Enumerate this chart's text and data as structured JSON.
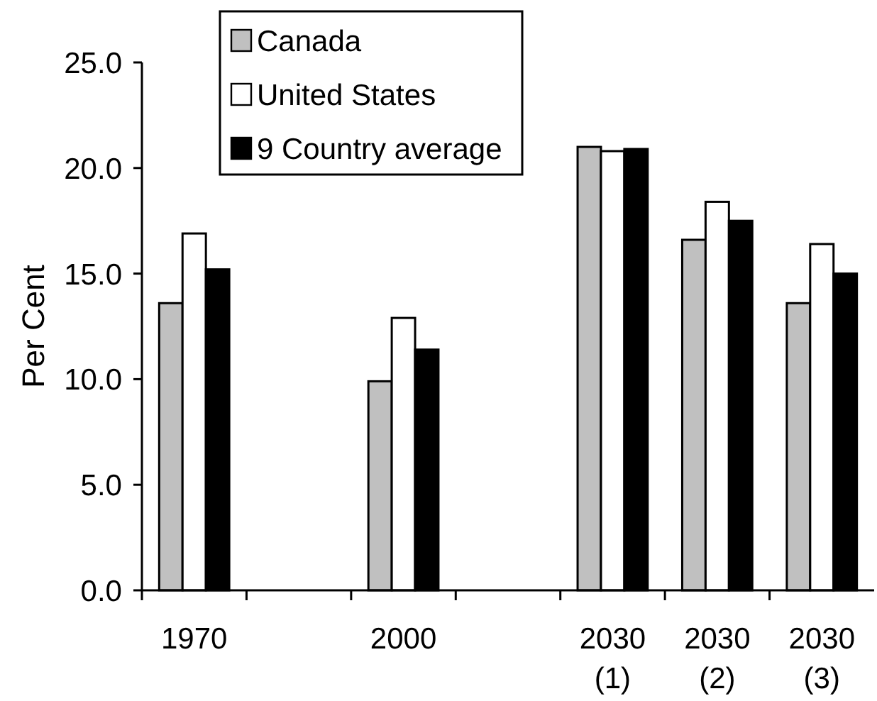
{
  "chart_data": {
    "type": "bar",
    "ylabel": "Per Cent",
    "categories": [
      "1970",
      null,
      "2000",
      null,
      "2030\n(1)",
      "2030\n(2)",
      "2030\n(3)"
    ],
    "series": [
      {
        "name": "Canada",
        "color": "#c0c0c0",
        "values": [
          13.6,
          null,
          9.9,
          null,
          21.0,
          16.6,
          13.6
        ]
      },
      {
        "name": "United States",
        "color": "#ffffff",
        "values": [
          16.9,
          null,
          12.9,
          null,
          20.8,
          18.4,
          16.4
        ]
      },
      {
        "name": "9 Country average",
        "color": "#000000",
        "values": [
          15.2,
          null,
          11.4,
          null,
          20.9,
          17.5,
          15.0
        ]
      }
    ],
    "ylim": [
      0,
      25
    ],
    "yticks": [
      {
        "value": 0,
        "label": "0.0"
      },
      {
        "value": 5,
        "label": "5.0"
      },
      {
        "value": 10,
        "label": "10.0"
      },
      {
        "value": 15,
        "label": "15.0"
      },
      {
        "value": 20,
        "label": "20.0"
      },
      {
        "value": 25,
        "label": "25.0"
      }
    ],
    "grid": false,
    "legend": "top left"
  }
}
